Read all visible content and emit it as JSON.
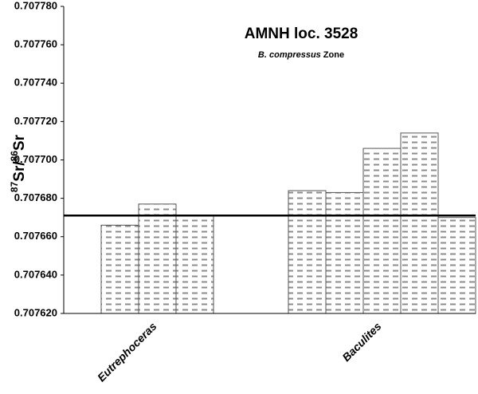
{
  "chart_data": {
    "type": "bar",
    "title": "AMNH loc. 3528",
    "subtitle": [
      "B. compressus",
      "Zone"
    ],
    "ylabel": [
      "87",
      "Sr/",
      "86",
      "Sr"
    ],
    "categories": [
      null,
      null,
      "Eutrephoceras",
      null,
      null,
      null,
      null,
      null,
      "Baculites",
      null,
      null
    ],
    "values": [
      null,
      0.707666,
      0.707677,
      0.707671,
      null,
      null,
      0.707684,
      0.707683,
      0.707706,
      0.707714,
      0.70767
    ],
    "color": "#8c8c8c",
    "hline": 0.707671,
    "ylim": [
      0.70762,
      0.70778
    ],
    "yticks": [
      {
        "value": 0.70762,
        "label": "0.707620"
      },
      {
        "value": 0.70764,
        "label": "0.707640"
      },
      {
        "value": 0.70766,
        "label": "0.707660"
      },
      {
        "value": 0.70768,
        "label": "0.707680"
      },
      {
        "value": 0.7077,
        "label": "0.707700"
      },
      {
        "value": 0.70772,
        "label": "0.707720"
      },
      {
        "value": 0.70774,
        "label": "0.707740"
      },
      {
        "value": 0.70776,
        "label": "0.707760"
      },
      {
        "value": 0.70778,
        "label": "0.707780"
      }
    ],
    "grid": false
  }
}
